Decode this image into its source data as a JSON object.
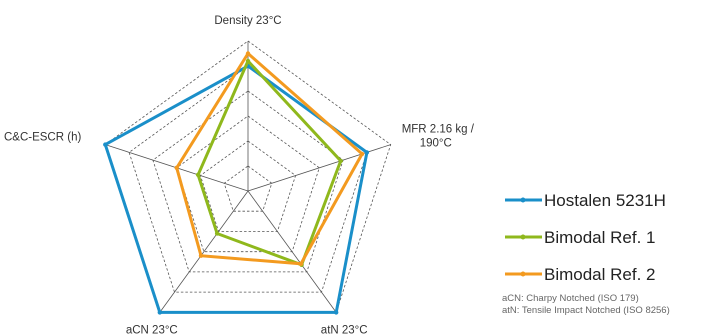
{
  "chart_data": {
    "type": "radar",
    "title": "",
    "axes": [
      "Density 23°C",
      "MFR 2.16 kg /\n190°C",
      "atN 23°C",
      "aCN 23°C",
      "C&C-ESCR (h)"
    ],
    "range": [
      0,
      6
    ],
    "grid_levels": 6,
    "grid": true,
    "legend_position": "right",
    "series": [
      {
        "name": "Hostalen 5231H",
        "color": "#1a8fc9",
        "values": [
          5,
          5,
          6,
          6,
          6
        ]
      },
      {
        "name": "Bimodal Ref. 1",
        "color": "#8fb81c",
        "values": [
          5.2,
          3.9,
          3.65,
          2.1,
          2.1
        ]
      },
      {
        "name": "Bimodal Ref. 2",
        "color": "#f39a1f",
        "values": [
          5.5,
          4.8,
          3.6,
          3.2,
          3.0
        ]
      }
    ],
    "annotations": [
      "aCN: Charpy Notched (ISO 179)",
      "atN: Tensile Impact Notched (ISO 8256)"
    ]
  }
}
